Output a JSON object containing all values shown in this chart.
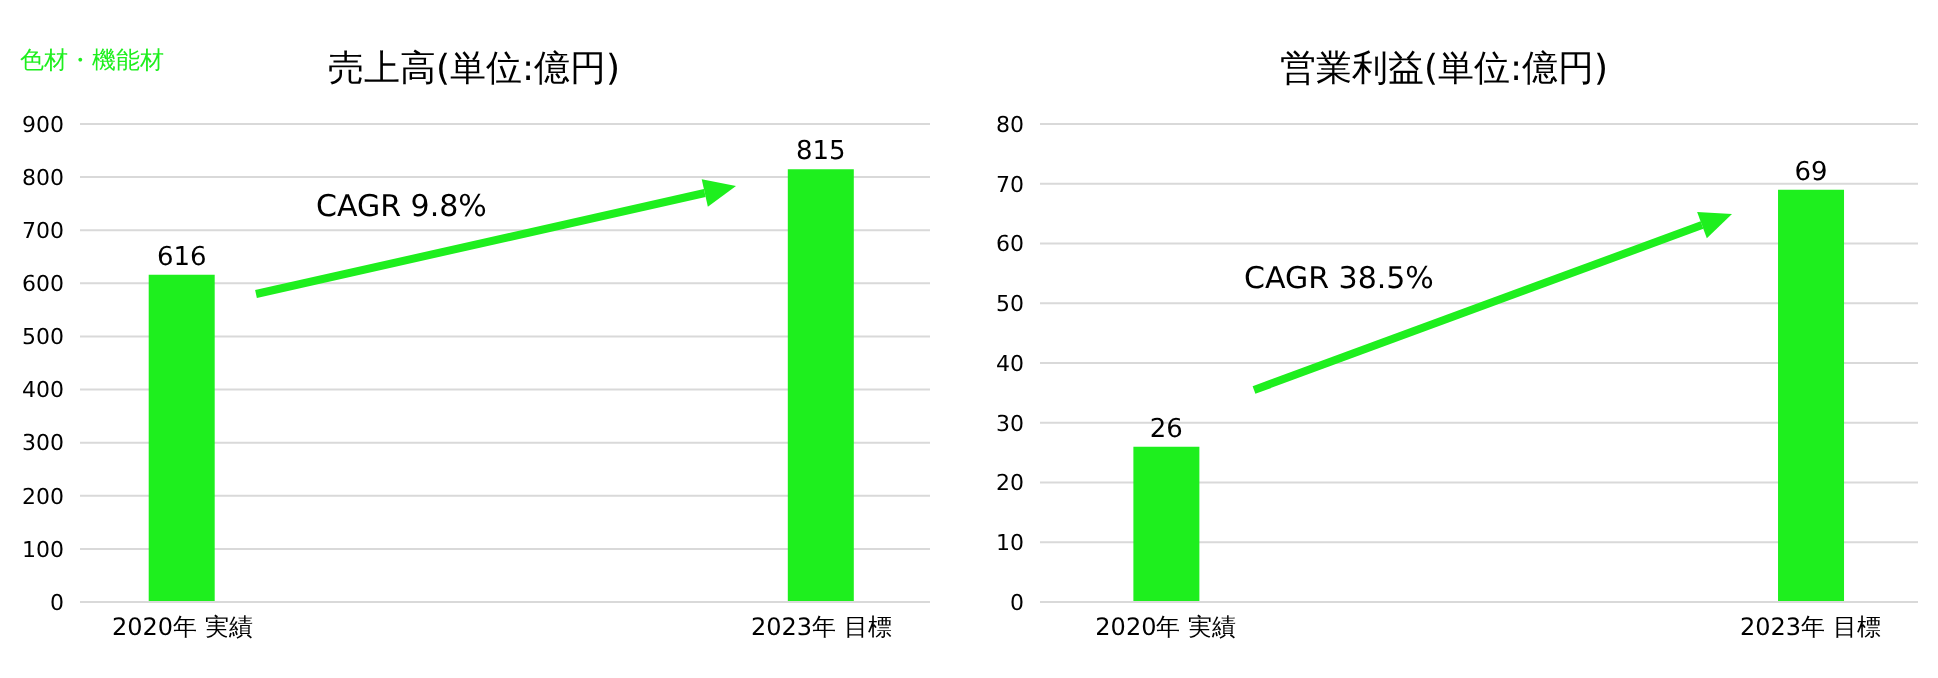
{
  "chart_data": [
    {
      "type": "bar",
      "title": "売上高(単位:億円)",
      "subtitle": "色材・機能材",
      "categories": [
        "2020年  実績",
        "2023年  目標"
      ],
      "values": [
        616,
        815
      ],
      "color": "#1eef1e",
      "ylim": [
        0,
        900
      ],
      "yticks": [
        0,
        100,
        200,
        300,
        400,
        500,
        600,
        700,
        800,
        900
      ],
      "grid": "y",
      "data_labels": true,
      "annotations": [
        "CAGR 9.8%"
      ]
    },
    {
      "type": "bar",
      "title": "営業利益(単位:億円)",
      "categories": [
        "2020年  実績",
        "2023年  目標"
      ],
      "values": [
        26,
        69
      ],
      "color": "#1eef1e",
      "ylim": [
        0,
        80
      ],
      "yticks": [
        0,
        10,
        20,
        30,
        40,
        50,
        60,
        70,
        80
      ],
      "grid": "y",
      "data_labels": true,
      "annotations": [
        "CAGR 38.5%"
      ]
    }
  ]
}
